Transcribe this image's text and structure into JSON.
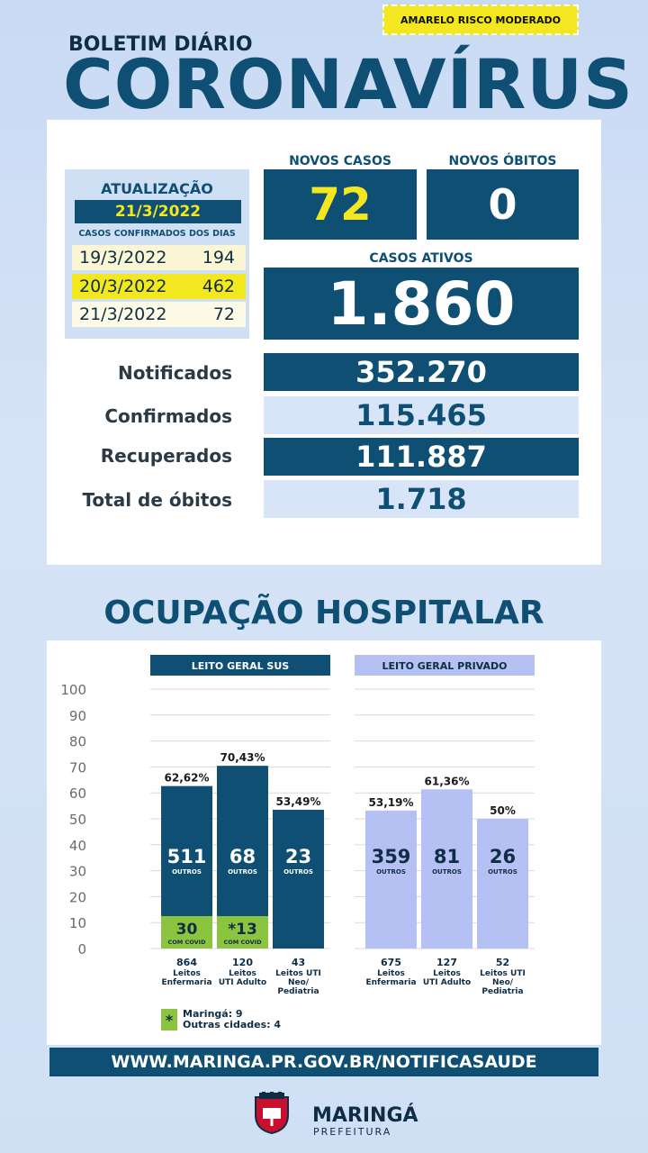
{
  "risk_label": "AMARELO RISCO MODERADO",
  "header": {
    "subtitle": "BOLETIM DIÁRIO",
    "title": "CORONAVÍRUS"
  },
  "update": {
    "label": "ATUALIZAÇÃO",
    "date": "21/3/2022",
    "confirmed_days_label": "CASOS CONFIRMADOS DOS DIAS",
    "days": [
      {
        "date": "19/3/2022",
        "count": "194"
      },
      {
        "date": "20/3/2022",
        "count": "462"
      },
      {
        "date": "21/3/2022",
        "count": "72"
      }
    ]
  },
  "new_cases": {
    "label": "NOVOS CASOS",
    "value": "72"
  },
  "new_deaths": {
    "label": "NOVOS ÓBITOS",
    "value": "0"
  },
  "active_cases": {
    "label": "CASOS ATIVOS",
    "value": "1.860"
  },
  "totals": [
    {
      "label": "Notificados",
      "value": "352.270"
    },
    {
      "label": "Confirmados",
      "value": "115.465"
    },
    {
      "label": "Recuperados",
      "value": "111.887"
    },
    {
      "label": "Total de óbitos",
      "value": "1.718"
    }
  ],
  "hospital": {
    "title": "OCUPAÇÃO HOSPITALAR"
  },
  "chart_data": {
    "type": "bar",
    "ylim": [
      0,
      100
    ],
    "yticks": [
      "0",
      "10",
      "20",
      "30",
      "40",
      "50",
      "60",
      "70",
      "80",
      "90",
      "100"
    ],
    "colors": {
      "sus": "#0f4f73",
      "privado": "#b5c1f2",
      "covid": "#8bc53f"
    },
    "groups": [
      {
        "name": "LEITO GERAL SUS",
        "bars": [
          {
            "percent": 62.62,
            "percent_label": "62,62%",
            "outros": "511",
            "covid": "30",
            "covid_label": "COM COVID",
            "capacity": "864",
            "bed_label": [
              "Leitos",
              "Enfermaria"
            ]
          },
          {
            "percent": 70.43,
            "percent_label": "70,43%",
            "outros": "68",
            "covid": "*13",
            "covid_label": "COM COVID",
            "capacity": "120",
            "bed_label": [
              "Leitos",
              "UTI Adulto"
            ]
          },
          {
            "percent": 53.49,
            "percent_label": "53,49%",
            "outros": "23",
            "covid": "",
            "covid_label": "",
            "capacity": "43",
            "bed_label": [
              "Leitos UTI",
              "Neo/",
              "Pediatria"
            ]
          }
        ]
      },
      {
        "name": "LEITO GERAL PRIVADO",
        "bars": [
          {
            "percent": 53.19,
            "percent_label": "53,19%",
            "outros": "359",
            "capacity": "675",
            "bed_label": [
              "Leitos",
              "Enfermaria"
            ]
          },
          {
            "percent": 61.36,
            "percent_label": "61,36%",
            "outros": "81",
            "capacity": "127",
            "bed_label": [
              "Leitos",
              "UTI Adulto"
            ]
          },
          {
            "percent": 50,
            "percent_label": "50%",
            "outros": "26",
            "capacity": "52",
            "bed_label": [
              "Leitos UTI",
              "Neo/",
              "Pediatria"
            ]
          }
        ]
      }
    ],
    "outros_label": "OUTROS",
    "note": {
      "symbol": "*",
      "lines": [
        "Maringá: 9",
        "Outras cidades: 4"
      ]
    }
  },
  "footer": {
    "url": "WWW.MARINGA.PR.GOV.BR/NOTIFICASAUDE",
    "logo_name": "MARINGÁ",
    "logo_sub": "PREFEITURA",
    "logo_icon": "city-crest-icon"
  }
}
